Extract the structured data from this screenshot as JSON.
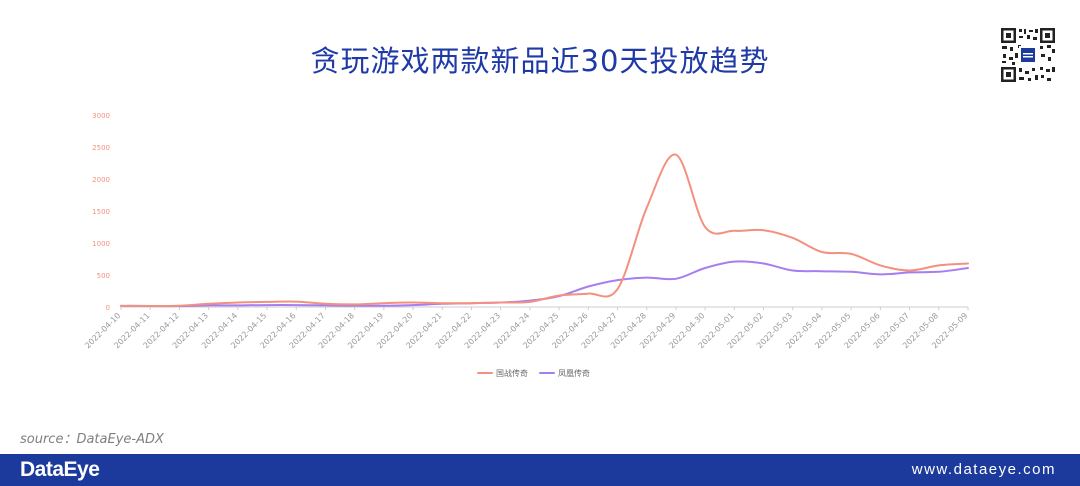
{
  "title": "贪玩游戏两款新品近30天投放趋势",
  "source": "source：DataEye-ADX",
  "footer": {
    "brand": "DataEye",
    "website": "www.dataeye.com"
  },
  "colors": {
    "title": "#1f3aa6",
    "footer_bg": "#1b3a9c",
    "series_1": "#f4907f",
    "series_2": "#a67ef0",
    "axis_text": "#f4907f",
    "tick_text": "#999999"
  },
  "icons": [
    "qr-code-icon"
  ],
  "chart_data": {
    "type": "line",
    "x": [
      "2022-04-10",
      "2022-04-11",
      "2022-04-12",
      "2022-04-13",
      "2022-04-14",
      "2022-04-15",
      "2022-04-16",
      "2022-04-17",
      "2022-04-18",
      "2022-04-19",
      "2022-04-20",
      "2022-04-21",
      "2022-04-22",
      "2022-04-23",
      "2022-04-24",
      "2022-04-25",
      "2022-04-26",
      "2022-04-27",
      "2022-04-28",
      "2022-04-29",
      "2022-04-30",
      "2022-05-01",
      "2022-05-02",
      "2022-05-03",
      "2022-05-04",
      "2022-05-05",
      "2022-05-06",
      "2022-05-07",
      "2022-05-08",
      "2022-05-09"
    ],
    "y_ticks": [
      "0",
      "500",
      "1000",
      "1500",
      "2000",
      "2500",
      "3000"
    ],
    "ylim": [
      0,
      3000
    ],
    "grid": false,
    "legend_position": "bottom-center",
    "series": [
      {
        "name": "国战传奇",
        "values": [
          15,
          15,
          20,
          50,
          70,
          80,
          85,
          50,
          40,
          60,
          70,
          60,
          60,
          70,
          80,
          180,
          210,
          280,
          1550,
          2380,
          1250,
          1190,
          1200,
          1080,
          860,
          830,
          650,
          570,
          650,
          680
        ]
      },
      {
        "name": "凤凰传奇",
        "values": [
          20,
          15,
          15,
          25,
          25,
          30,
          30,
          25,
          20,
          20,
          30,
          50,
          60,
          70,
          100,
          170,
          320,
          420,
          460,
          440,
          610,
          710,
          680,
          570,
          560,
          550,
          510,
          540,
          550,
          610
        ]
      }
    ]
  }
}
